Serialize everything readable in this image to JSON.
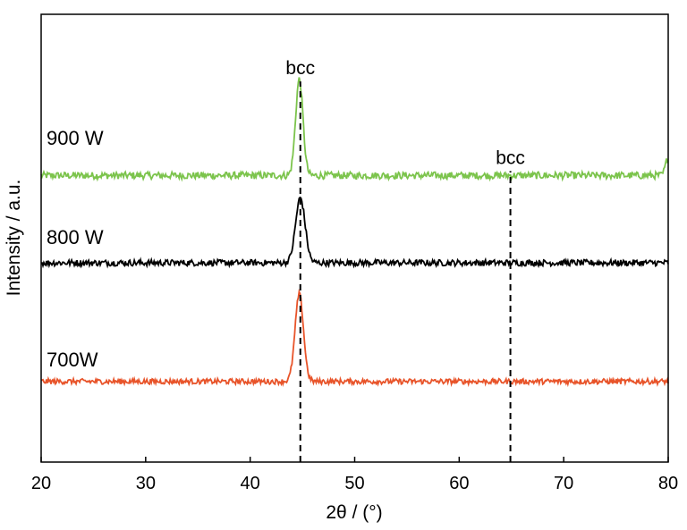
{
  "chart_data": {
    "type": "line",
    "title": "",
    "xlabel": "2θ / (°)",
    "ylabel": "Intensity / a.u.",
    "xlim": [
      20,
      80
    ],
    "xticks": [
      20,
      30,
      40,
      50,
      60,
      70,
      80
    ],
    "ylim": [
      0,
      1
    ],
    "yticks_shown": false,
    "grid": false,
    "legend": "none",
    "series": [
      {
        "name": "900 W",
        "color": "#7cc44c",
        "baseline": 0.64,
        "noise": 0.008,
        "peaks": [
          {
            "x": 44.7,
            "height": 0.215,
            "width": 0.35
          },
          {
            "x": 80.0,
            "height": 0.04,
            "width": 0.25
          }
        ]
      },
      {
        "name": "800 W",
        "color": "#000000",
        "baseline": 0.445,
        "noise": 0.007,
        "peaks": [
          {
            "x": 44.8,
            "height": 0.145,
            "width": 0.45
          }
        ]
      },
      {
        "name": "700W",
        "color": "#e8542a",
        "baseline": 0.18,
        "noise": 0.006,
        "peaks": [
          {
            "x": 44.7,
            "height": 0.195,
            "width": 0.4
          }
        ]
      }
    ],
    "annotations": [
      {
        "text": "bcc",
        "x": 44.8,
        "line_y_from": 0.0,
        "line_y_to": 0.85
      },
      {
        "text": "bcc",
        "x": 64.9,
        "line_y_from": 0.0,
        "line_y_to": 0.65
      }
    ]
  }
}
